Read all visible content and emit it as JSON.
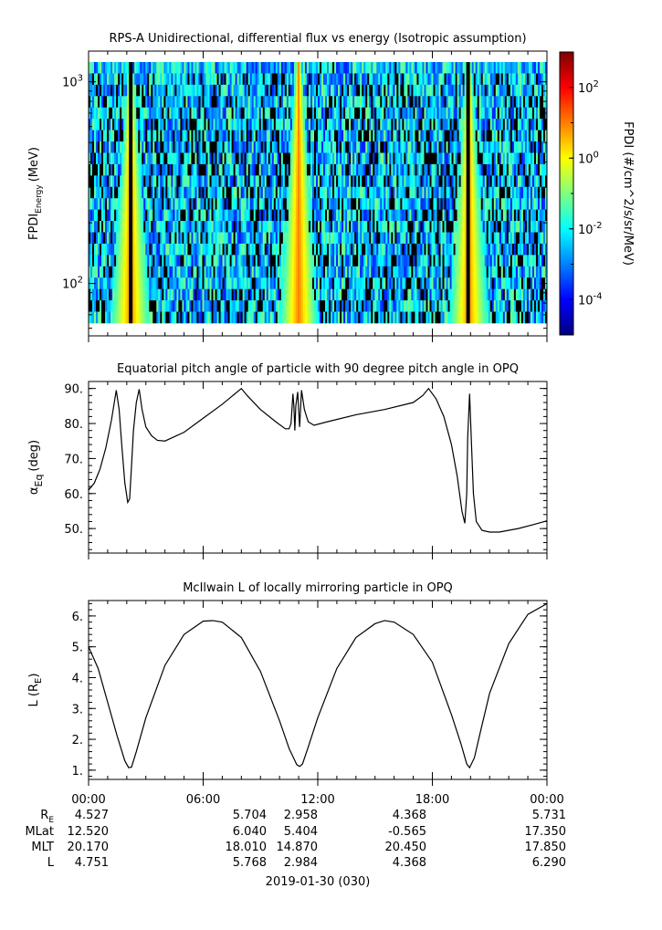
{
  "chart_data": [
    {
      "type": "heatmap",
      "title": "RPS-A Unidirectional, differential flux vs energy (Isotropic assumption)",
      "ylabel": "FPDI",
      "ylabel_sub": "Energy",
      "ylabel_unit": "(MeV)",
      "y_scale": "log",
      "ylim": [
        55,
        1420
      ],
      "y_tick_labels": [
        {
          "value": 100,
          "base": "10",
          "exp": "2"
        },
        {
          "value": 1000,
          "base": "10",
          "exp": "3"
        }
      ],
      "x": {
        "start_hours": 0,
        "end_hours": 24
      },
      "energy_channels": 23,
      "values_log10_description_free": true,
      "background_log10": [
        -3.8,
        -1.0
      ],
      "enhancements": [
        {
          "center_hour": 2.2,
          "peak_log10": 1.0
        },
        {
          "center_hour": 11.0,
          "peak_log10": 1.0
        },
        {
          "center_hour": 19.9,
          "peak_log10": 1.0
        }
      ],
      "colorbar": {
        "label": "FPDI (#/cm^2/s/sr/MeV)",
        "range_log10": [
          -5,
          3
        ],
        "ticks": [
          {
            "value": 2,
            "base": "10",
            "exp": "2"
          },
          {
            "value": 0,
            "base": "10",
            "exp": "0"
          },
          {
            "value": -2,
            "base": "10",
            "exp": "-2"
          },
          {
            "value": -4,
            "base": "10",
            "exp": "-4"
          }
        ]
      }
    },
    {
      "type": "line",
      "title": "Equatorial pitch angle of particle with 90 degree pitch angle in OPQ",
      "ylabel_main": "α",
      "ylabel_sub": "Eq",
      "ylabel_unit": "(deg)",
      "ylim": [
        43,
        92
      ],
      "y_ticks": [
        50,
        60,
        70,
        80,
        90
      ],
      "y_tick_labels": [
        "50.",
        "60.",
        "70.",
        "80.",
        "90."
      ],
      "x_hours": [
        0,
        0.3,
        0.6,
        0.9,
        1.2,
        1.45,
        1.6,
        1.75,
        1.9,
        2.05,
        2.15,
        2.25,
        2.35,
        2.5,
        2.65,
        2.8,
        3.0,
        3.3,
        3.6,
        4.0,
        5.0,
        6.0,
        7.0,
        8.0,
        8.3,
        9.0,
        9.8,
        10.3,
        10.5,
        10.6,
        10.7,
        10.75,
        10.8,
        10.85,
        10.95,
        11.0,
        11.05,
        11.15,
        11.3,
        11.5,
        11.8,
        12.5,
        14.0,
        15.5,
        17.0,
        17.5,
        17.8,
        18.2,
        18.6,
        19.0,
        19.3,
        19.55,
        19.7,
        19.8,
        19.85,
        19.95,
        20.05,
        20.15,
        20.3,
        20.6,
        21.0,
        21.5,
        22.5,
        23.2,
        24.0
      ],
      "y_deg": [
        61,
        63,
        67,
        73,
        81,
        89.5,
        84,
        73,
        63,
        57.5,
        58.5,
        68,
        78,
        86,
        89.8,
        84,
        79,
        76.5,
        75.2,
        75,
        77.5,
        81.5,
        85.5,
        90,
        88,
        84,
        80.5,
        78.5,
        78.5,
        80,
        88.5,
        85,
        78,
        85,
        89,
        84,
        79,
        89.5,
        84,
        80.5,
        79.5,
        80.5,
        82.5,
        84,
        86,
        88,
        90,
        87,
        82,
        74,
        65,
        55,
        51.5,
        60,
        76,
        88.5,
        74,
        60,
        52,
        49.5,
        49,
        49,
        50,
        51,
        52.2
      ]
    },
    {
      "type": "line",
      "title": "McIlwain L of locally mirroring particle in OPQ",
      "ylabel_main": "L (R",
      "ylabel_sub": "E",
      "ylabel_close": ")",
      "ylim": [
        0.7,
        6.5
      ],
      "y_ticks": [
        1,
        2,
        3,
        4,
        5,
        6
      ],
      "y_tick_labels": [
        "1.",
        "2.",
        "3.",
        "4.",
        "5.",
        "6."
      ],
      "x_hours": [
        0,
        0.5,
        1.0,
        1.5,
        1.9,
        2.1,
        2.25,
        2.5,
        3.0,
        4.0,
        5.0,
        6.0,
        6.5,
        7.0,
        8.0,
        9.0,
        10.0,
        10.5,
        10.9,
        11.05,
        11.2,
        11.5,
        12.0,
        13.0,
        14.0,
        15.0,
        15.5,
        16.0,
        17.0,
        18.0,
        19.0,
        19.5,
        19.8,
        19.95,
        20.2,
        20.5,
        21.0,
        22.0,
        23.0,
        24.0
      ],
      "y": [
        5.0,
        4.3,
        3.2,
        2.1,
        1.3,
        1.08,
        1.1,
        1.6,
        2.7,
        4.4,
        5.4,
        5.83,
        5.85,
        5.8,
        5.3,
        4.2,
        2.6,
        1.7,
        1.18,
        1.12,
        1.2,
        1.75,
        2.7,
        4.3,
        5.3,
        5.75,
        5.85,
        5.8,
        5.4,
        4.5,
        2.8,
        1.85,
        1.2,
        1.08,
        1.4,
        2.2,
        3.5,
        5.1,
        6.05,
        6.4
      ]
    }
  ],
  "time_axis": {
    "ticks_hours": [
      0,
      6,
      12,
      18,
      24
    ],
    "tick_labels": [
      "00:00",
      "06:00",
      "12:00",
      "18:00",
      "00:00"
    ],
    "date_label": "2019-01-30 (030)"
  },
  "ephemeris": [
    {
      "label_main": "R",
      "label_sub": "E",
      "values": [
        "4.527",
        "5.704",
        "2.958",
        "4.368",
        "5.731"
      ]
    },
    {
      "label_main": "MLat",
      "label_sub": "",
      "values": [
        "12.520",
        "6.040",
        "5.404",
        "-0.565",
        "17.350"
      ]
    },
    {
      "label_main": "MLT",
      "label_sub": "",
      "values": [
        "20.170",
        "18.010",
        "14.870",
        "20.450",
        "17.850"
      ]
    },
    {
      "label_main": "L",
      "label_sub": "",
      "values": [
        "4.751",
        "5.768",
        "2.984",
        "4.368",
        "6.290"
      ]
    }
  ]
}
